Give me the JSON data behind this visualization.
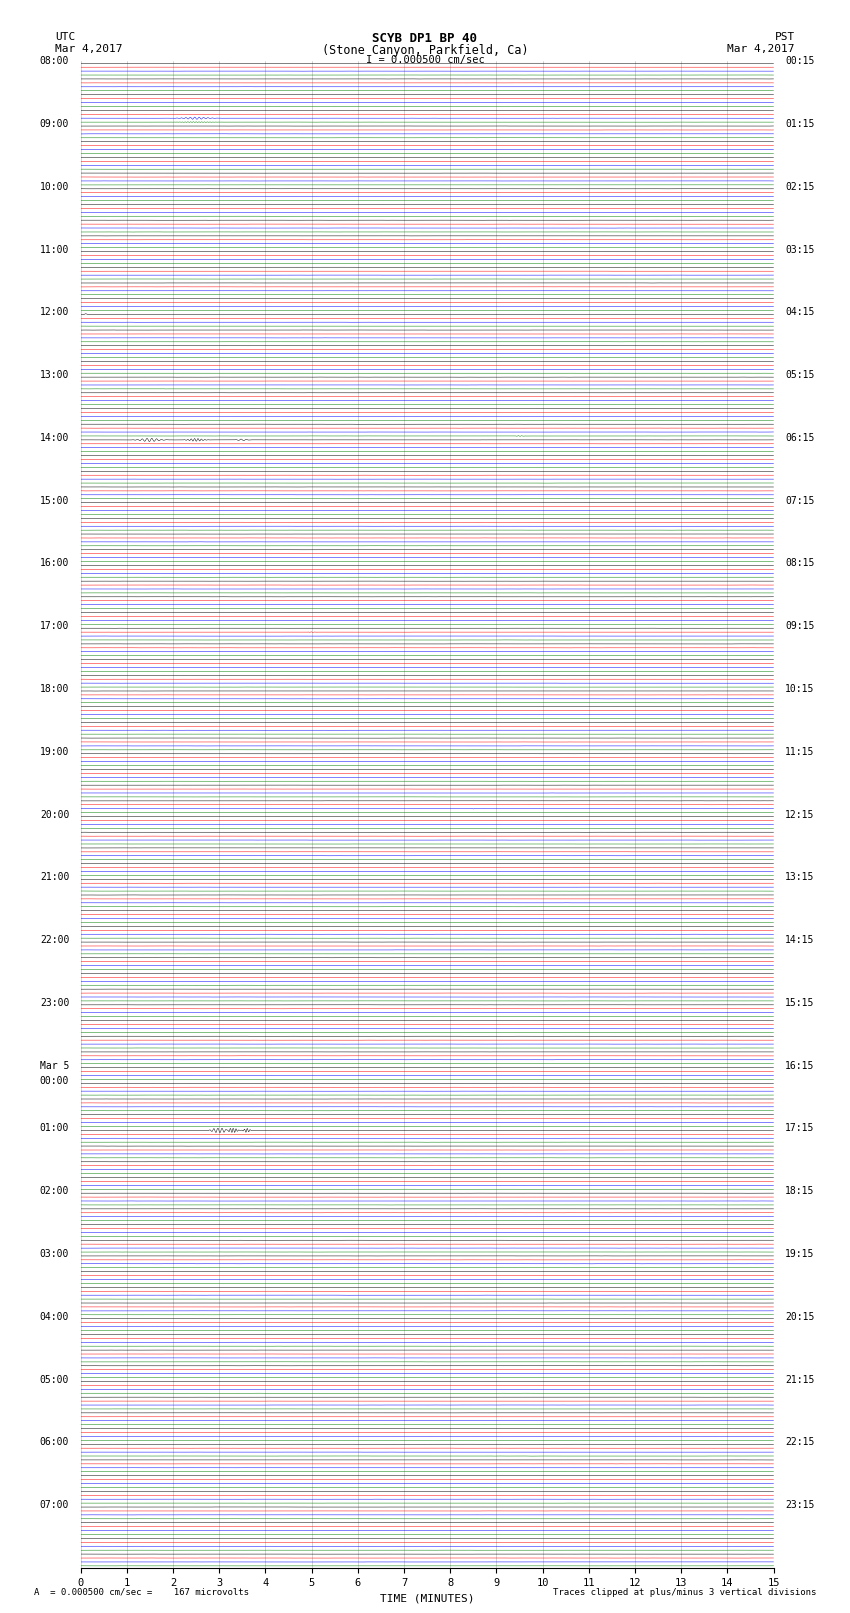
{
  "title_line1": "SCYB DP1 BP 40",
  "title_line2": "(Stone Canyon, Parkfield, Ca)",
  "scale_text": "I = 0.000500 cm/sec",
  "left_label": "UTC",
  "right_label": "PST",
  "left_date": "Mar 4,2017",
  "right_date": "Mar 4,2017",
  "xlabel": "TIME (MINUTES)",
  "bottom_left": "A  = 0.000500 cm/sec =    167 microvolts",
  "bottom_right": "Traces clipped at plus/minus 3 vertical divisions",
  "utc_times": [
    "08:00",
    "",
    "",
    "",
    "09:00",
    "",
    "",
    "",
    "10:00",
    "",
    "",
    "",
    "11:00",
    "",
    "",
    "",
    "12:00",
    "",
    "",
    "",
    "13:00",
    "",
    "",
    "",
    "14:00",
    "",
    "",
    "",
    "15:00",
    "",
    "",
    "",
    "16:00",
    "",
    "",
    "",
    "17:00",
    "",
    "",
    "",
    "18:00",
    "",
    "",
    "",
    "19:00",
    "",
    "",
    "",
    "20:00",
    "",
    "",
    "",
    "21:00",
    "",
    "",
    "",
    "22:00",
    "",
    "",
    "",
    "23:00",
    "",
    "",
    "",
    "Mar 5",
    "00:00",
    "",
    "",
    "01:00",
    "",
    "",
    "",
    "02:00",
    "",
    "",
    "",
    "03:00",
    "",
    "",
    "",
    "04:00",
    "",
    "",
    "",
    "05:00",
    "",
    "",
    "",
    "06:00",
    "",
    "",
    "",
    "07:00",
    "",
    "",
    ""
  ],
  "pst_times": [
    "00:15",
    "",
    "",
    "",
    "01:15",
    "",
    "",
    "",
    "02:15",
    "",
    "",
    "",
    "03:15",
    "",
    "",
    "",
    "04:15",
    "",
    "",
    "",
    "05:15",
    "",
    "",
    "",
    "06:15",
    "",
    "",
    "",
    "07:15",
    "",
    "",
    "",
    "08:15",
    "",
    "",
    "",
    "09:15",
    "",
    "",
    "",
    "10:15",
    "",
    "",
    "",
    "11:15",
    "",
    "",
    "",
    "12:15",
    "",
    "",
    "",
    "13:15",
    "",
    "",
    "",
    "14:15",
    "",
    "",
    "",
    "15:15",
    "",
    "",
    "",
    "16:15",
    "",
    "",
    "",
    "17:15",
    "",
    "",
    "",
    "18:15",
    "",
    "",
    "",
    "19:15",
    "",
    "",
    "",
    "20:15",
    "",
    "",
    "",
    "21:15",
    "",
    "",
    "",
    "22:15",
    "",
    "",
    "",
    "23:15",
    "",
    "",
    ""
  ],
  "trace_colors": [
    "black",
    "red",
    "blue",
    "green"
  ],
  "n_rows": 96,
  "traces_per_row": 4,
  "x_min": 0,
  "x_max": 15,
  "x_ticks": [
    0,
    1,
    2,
    3,
    4,
    5,
    6,
    7,
    8,
    9,
    10,
    11,
    12,
    13,
    14,
    15
  ],
  "noise_amplitude": 0.035,
  "background_color": "white",
  "fig_width": 8.5,
  "fig_height": 16.13,
  "dpi": 100
}
